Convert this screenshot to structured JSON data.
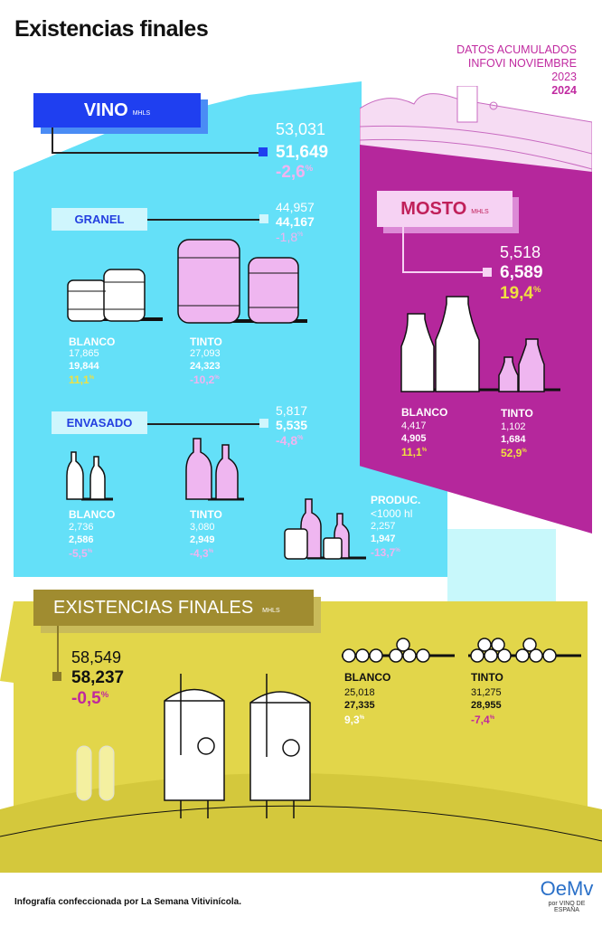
{
  "title": "Existencias finales",
  "legend": {
    "line1": "DATOS ACUMULADOS",
    "line2": "INFOVI NOVIEMBRE",
    "year_prev": "2023",
    "year_curr": "2024"
  },
  "colors": {
    "vino": "#1f3ff0",
    "vino_bg": "#64e0f8",
    "mosto": "#b5279c",
    "existencias": "#e2d64a",
    "existencias_label": "#a08c30",
    "negative": "#f0b4f0",
    "positive": "#f0e040"
  },
  "vino": {
    "label": "VINO",
    "unit": "MHLS",
    "prev": "53,031",
    "curr": "51,649",
    "change": "-2,6",
    "pct": "%",
    "granel": {
      "label": "GRANEL",
      "prev": "44,957",
      "curr": "44,167",
      "change": "-1,8",
      "blanco": {
        "label": "BLANCO",
        "prev": "17,865",
        "curr": "19,844",
        "change": "11,1"
      },
      "tinto": {
        "label": "TINTO",
        "prev": "27,093",
        "curr": "24,323",
        "change": "-10,2"
      }
    },
    "envasado": {
      "label": "ENVASADO",
      "prev": "5,817",
      "curr": "5,535",
      "change": "-4,8",
      "blanco": {
        "label": "BLANCO",
        "prev": "2,736",
        "curr": "2,586",
        "change": "-5,5"
      },
      "tinto": {
        "label": "TINTO",
        "prev": "3,080",
        "curr": "2,949",
        "change": "-4,3"
      }
    },
    "produc": {
      "label1": "PRODUC.",
      "label2": "<1000 hl",
      "prev": "2,257",
      "curr": "1,947",
      "change": "-13,7"
    }
  },
  "mosto": {
    "label": "MOSTO",
    "unit": "MHLS",
    "prev": "5,518",
    "curr": "6,589",
    "change": "19,4",
    "blanco": {
      "label": "BLANCO",
      "prev": "4,417",
      "curr": "4,905",
      "change": "11,1"
    },
    "tinto": {
      "label": "TINTO",
      "prev": "1,102",
      "curr": "1,684",
      "change": "52,9"
    }
  },
  "existencias": {
    "label": "EXISTENCIAS FINALES",
    "unit": "MHLS",
    "prev": "58,549",
    "curr": "58,237",
    "change": "-0,5",
    "blanco": {
      "label": "BLANCO",
      "prev": "25,018",
      "curr": "27,335",
      "change": "9,3"
    },
    "tinto": {
      "label": "TINTO",
      "prev": "31,275",
      "curr": "28,955",
      "change": "-7,4"
    }
  },
  "footer": {
    "credit": "Infografía confeccionada por La Semana Vitivinícola.",
    "logo_text": "OeMv",
    "logo_sub": "por VINO DE ESPAÑA"
  }
}
